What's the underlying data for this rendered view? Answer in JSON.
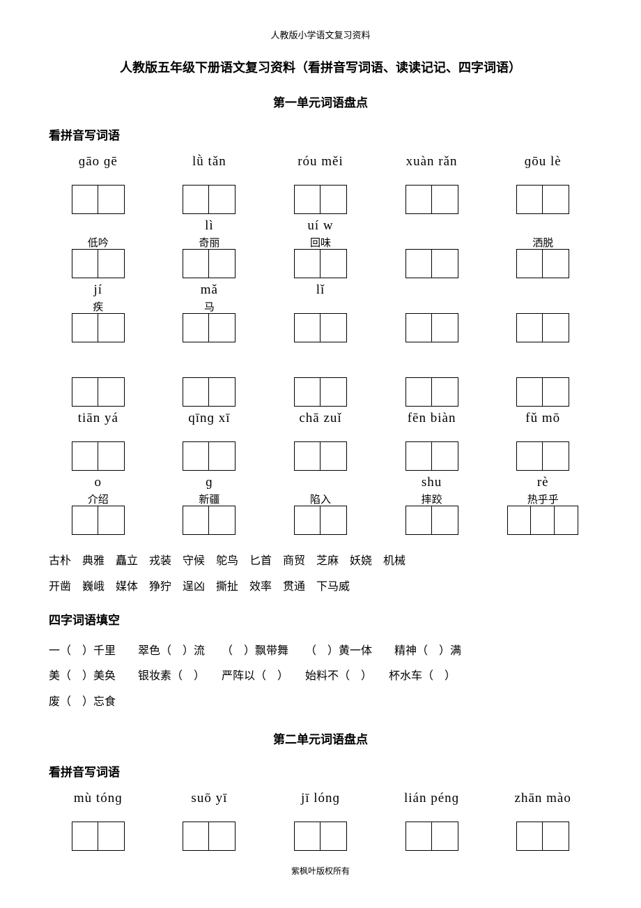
{
  "header": "人教版小学语文复习资料",
  "main_title": "人教版五年级下册语文复习资料（看拼音写词语、读读记记、四字词语）",
  "unit1_title": "第一单元词语盘点",
  "section_pinyin_label": "看拼音写词语",
  "section_fill_label": "四字词语填空",
  "unit2_title": "第二单元词语盘点",
  "footer": "紫枫叶版权所有",
  "unit1_pinyin_items": [
    {
      "pinyin": "ɡāo ɡē",
      "hint": "",
      "boxes": 2
    },
    {
      "pinyin": "lǜ tǎn",
      "hint": "",
      "boxes": 2
    },
    {
      "pinyin": "róu měi",
      "hint": "",
      "boxes": 2
    },
    {
      "pinyin": "xuàn rǎn",
      "hint": "",
      "boxes": 2
    },
    {
      "pinyin": "ɡōu lè",
      "hint": "",
      "boxes": 2
    },
    {
      "pinyin": "",
      "hint": "低吟",
      "boxes": 2
    },
    {
      "pinyin": "lì",
      "hint": "奇丽",
      "boxes": 2
    },
    {
      "pinyin": "uí w",
      "hint": "回味",
      "boxes": 2
    },
    {
      "pinyin": "",
      "hint": "",
      "boxes": 2
    },
    {
      "pinyin": "",
      "hint": "洒脱",
      "boxes": 2
    },
    {
      "pinyin": "jí",
      "hint": "疾",
      "boxes": 2
    },
    {
      "pinyin": "mǎ",
      "hint": "马",
      "boxes": 2
    },
    {
      "pinyin": "lǐ",
      "hint": "",
      "boxes": 2
    },
    {
      "pinyin": "",
      "hint": "",
      "boxes": 2
    },
    {
      "pinyin": "",
      "hint": "",
      "boxes": 2
    },
    {
      "pinyin": "",
      "hint": "",
      "boxes": 2
    },
    {
      "pinyin": "",
      "hint": "",
      "boxes": 2
    },
    {
      "pinyin": "",
      "hint": "",
      "boxes": 2
    },
    {
      "pinyin": "",
      "hint": "",
      "boxes": 2
    },
    {
      "pinyin": "",
      "hint": "",
      "boxes": 2
    },
    {
      "pinyin": "tiān yá",
      "hint": "",
      "boxes": 2
    },
    {
      "pinyin": "qīnɡ xī",
      "hint": "",
      "boxes": 2
    },
    {
      "pinyin": "chā zuǐ",
      "hint": "",
      "boxes": 2
    },
    {
      "pinyin": "fēn biàn",
      "hint": "",
      "boxes": 2
    },
    {
      "pinyin": "fǔ mō",
      "hint": "",
      "boxes": 2
    },
    {
      "pinyin": "o",
      "hint": "介绍",
      "boxes": 2
    },
    {
      "pinyin": "ɡ",
      "hint": "新疆",
      "boxes": 2
    },
    {
      "pinyin": "",
      "hint": "陷入",
      "boxes": 2
    },
    {
      "pinyin": "shu",
      "hint": "摔跤",
      "boxes": 2
    },
    {
      "pinyin": "rè",
      "hint": "热乎乎",
      "boxes": 3
    }
  ],
  "vocab_line1": "古朴　典雅　矗立　戎装　守候　鸵鸟　匕首　商贸　芝麻　妖娆　机械",
  "vocab_line2": "开凿　巍峨　媒体　狰狞　逞凶　撕扯　效率　贯通　下马威",
  "fill_line1": "一（　）千里　　翠色（　）流　　（　）飘带舞　　（　）黄一体　　精神（　）满",
  "fill_line2": "美（　）美奂　　银妆素（　）　　严阵以（　）　　始料不（　）　　杯水车（　）",
  "fill_line3": "废（　）忘食",
  "unit2_pinyin_items": [
    {
      "pinyin": "mù tónɡ",
      "hint": "",
      "boxes": 2
    },
    {
      "pinyin": "suō yī",
      "hint": "",
      "boxes": 2
    },
    {
      "pinyin": "jī lónɡ",
      "hint": "",
      "boxes": 2
    },
    {
      "pinyin": "lián pénɡ",
      "hint": "",
      "boxes": 2
    },
    {
      "pinyin": "zhān mào",
      "hint": "",
      "boxes": 2
    }
  ]
}
